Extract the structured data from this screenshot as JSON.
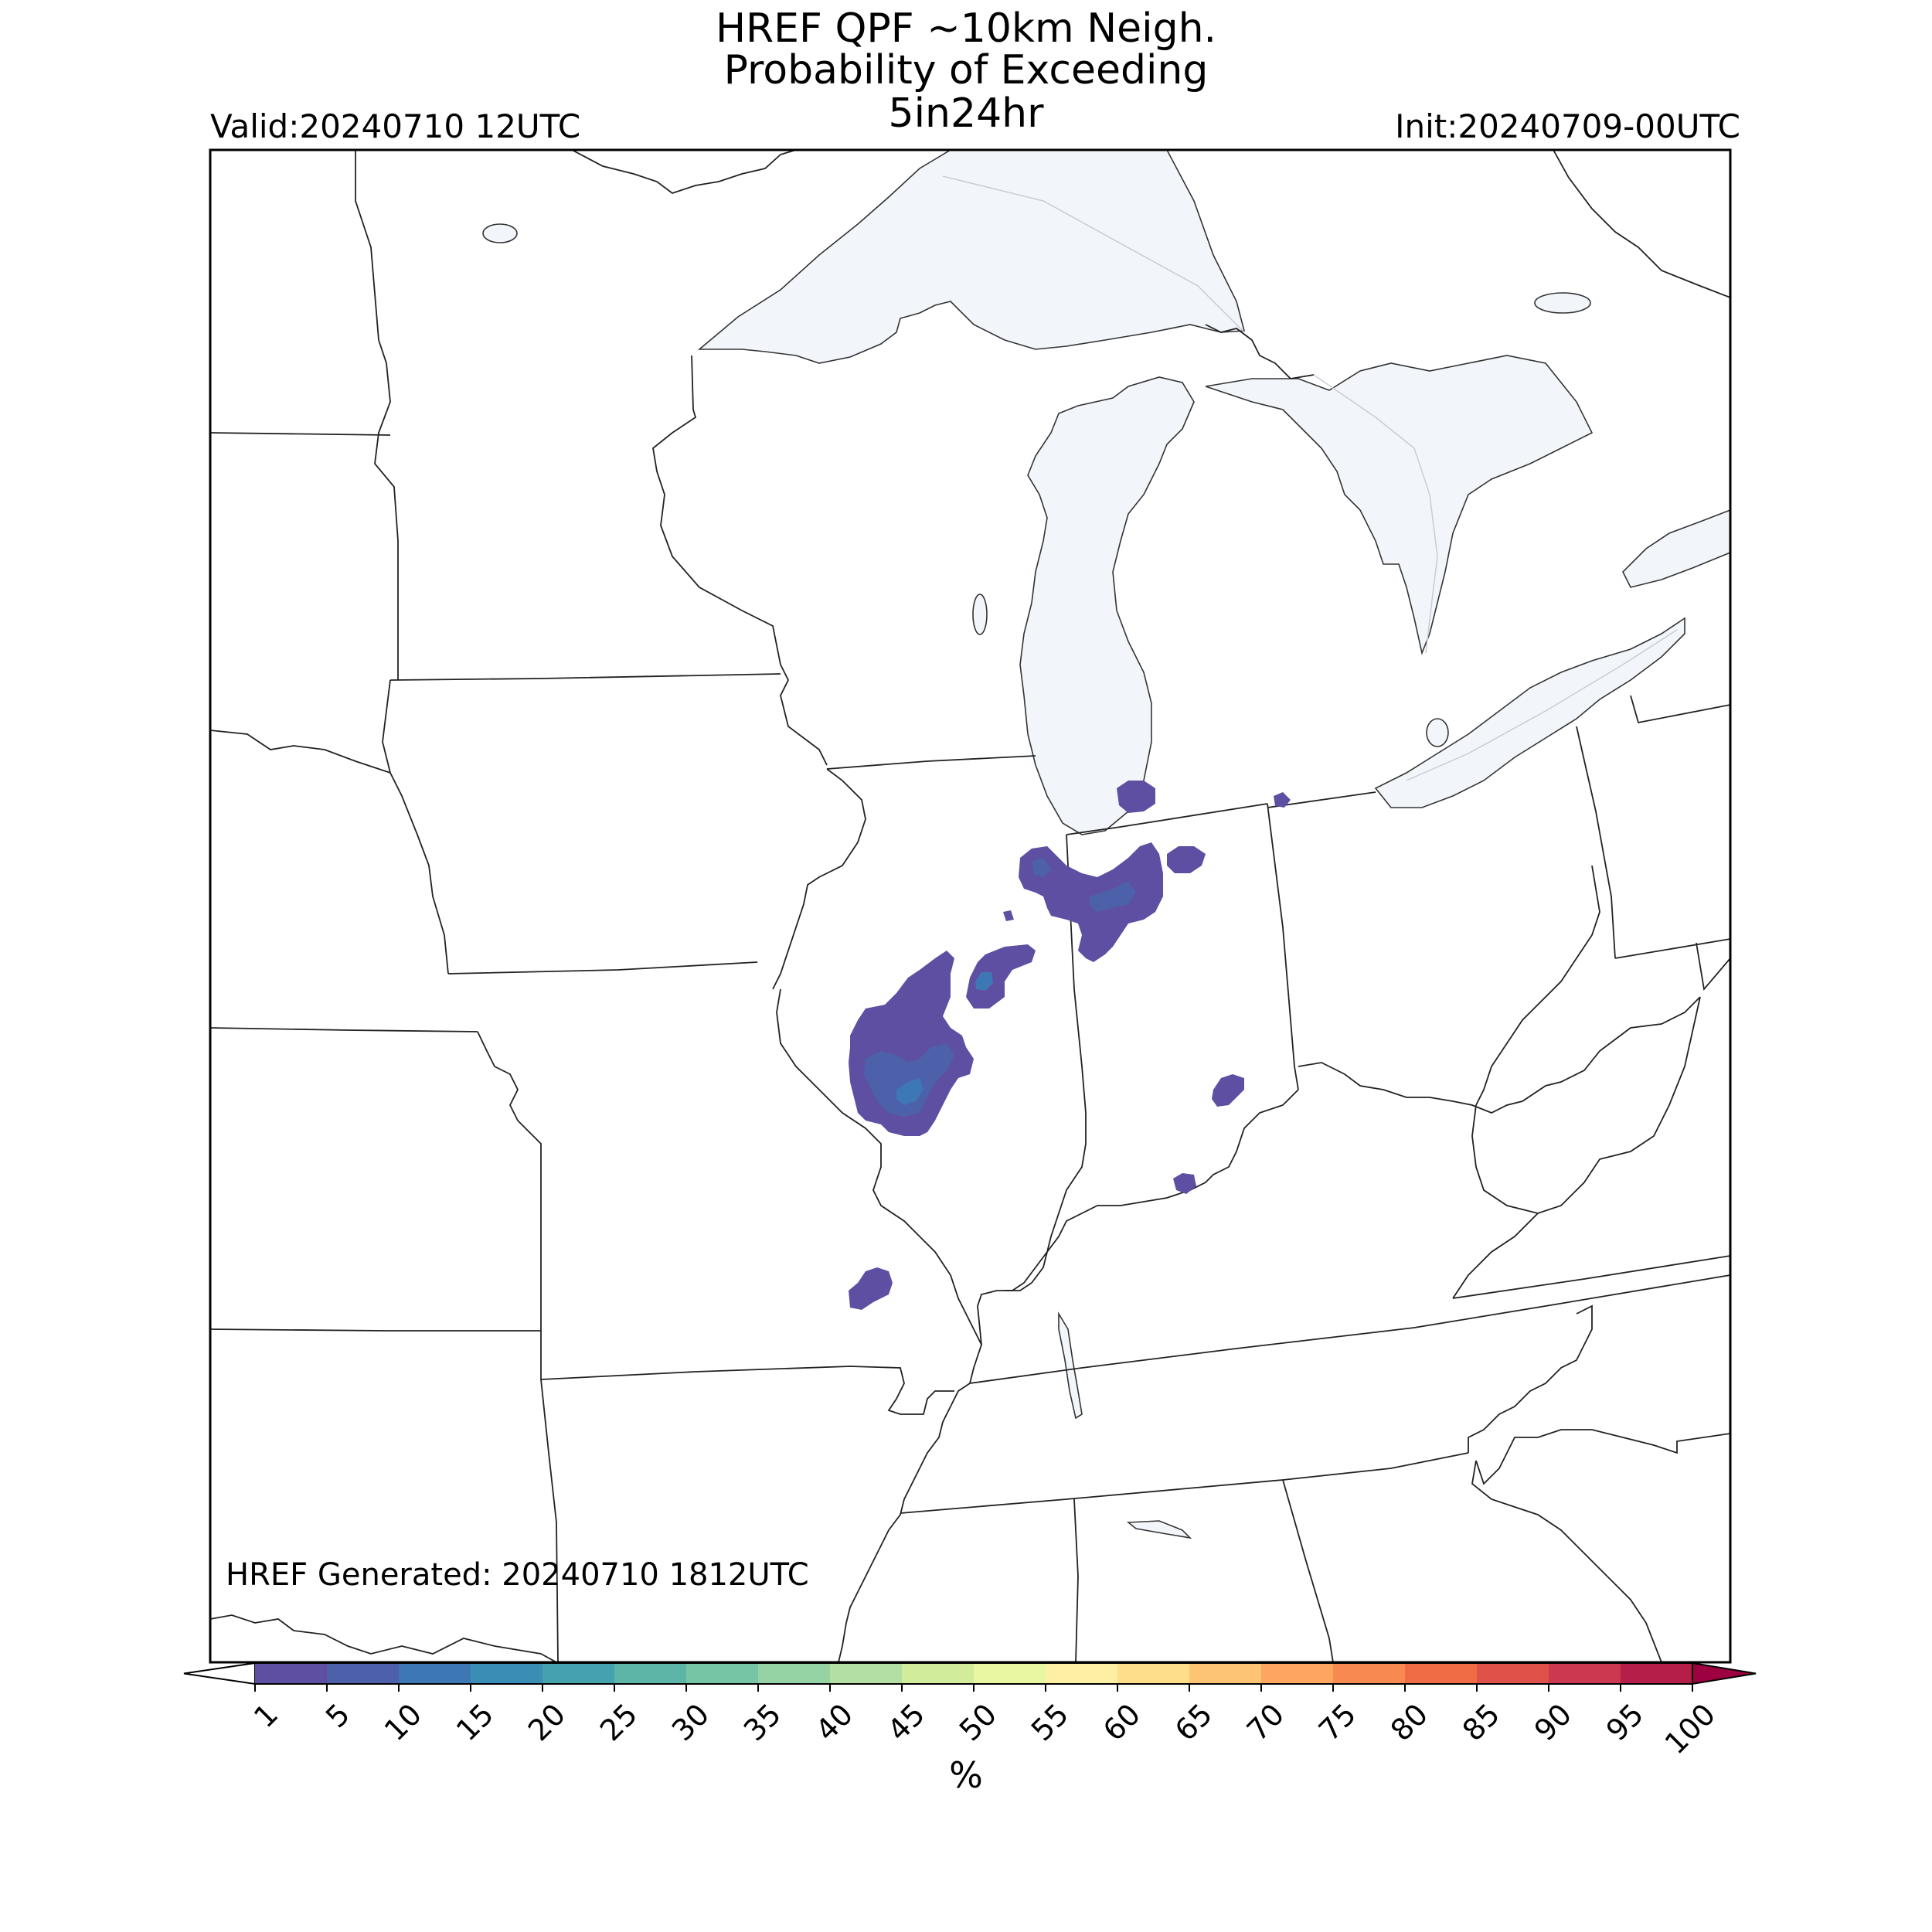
{
  "title": {
    "line1": "HREF QPF ~10km Neigh.",
    "line2": "Probability of Exceeding",
    "line3": "5in24hr"
  },
  "valid_label": "Valid:20240710 12UTC",
  "init_label": "Init:20240709-00UTC",
  "generated_label": "HREF Generated: 20240710 1812UTC",
  "colorbar": {
    "unit_label": "%",
    "ticks": [
      "1",
      "5",
      "10",
      "15",
      "20",
      "25",
      "30",
      "35",
      "40",
      "45",
      "50",
      "55",
      "60",
      "65",
      "70",
      "75",
      "80",
      "85",
      "90",
      "95",
      "100"
    ],
    "colors": [
      "#5e4fa2",
      "#4c61aa",
      "#3e78b4",
      "#3a8db5",
      "#45a1ae",
      "#5cb5a6",
      "#76c6a6",
      "#95d3a4",
      "#b3e0a2",
      "#d1ed9c",
      "#e9f6a2",
      "#fdf0a4",
      "#fedd8b",
      "#fdc473",
      "#fca65f",
      "#f88950",
      "#ef6c45",
      "#e0514a",
      "#cd3851",
      "#b41e48",
      "#9e0142"
    ],
    "under_color": "#ffffff",
    "over_color": "#9e0142"
  },
  "colors": {
    "water": "#f2f6fb",
    "prob_1_5": "#5e4fa2",
    "prob_5_10": "#4c61aa",
    "prob_10_15": "#3e78b4"
  }
}
